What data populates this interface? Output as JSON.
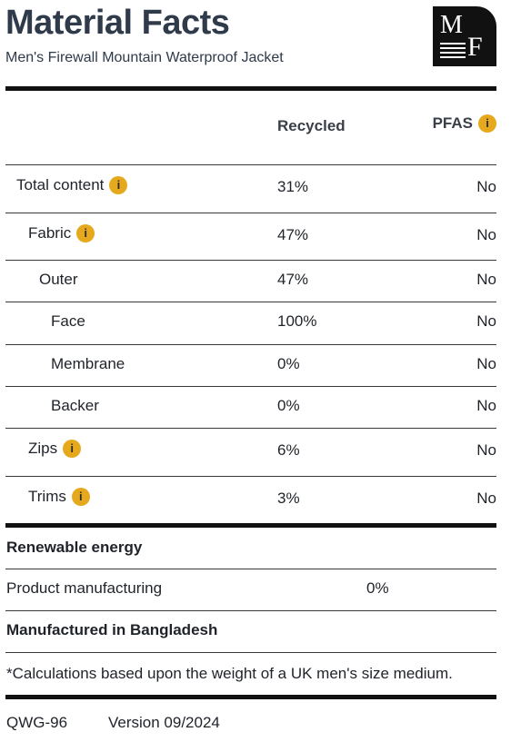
{
  "header": {
    "title": "Material Facts",
    "subtitle": "Men's Firewall Mountain Waterproof Jacket",
    "logo_text_m": "M",
    "logo_text_f": "F"
  },
  "table": {
    "col_recycled": "Recycled",
    "col_pfas": "PFAS",
    "info_glyph": "i",
    "rows": [
      {
        "label": "Total content",
        "recycled": "31%",
        "pfas": "No",
        "has_info": true
      },
      {
        "label": "Fabric",
        "recycled": "47%",
        "pfas": "No",
        "has_info": true
      },
      {
        "label": "Outer",
        "recycled": "47%",
        "pfas": "No",
        "has_info": false
      },
      {
        "label": "Face",
        "recycled": "100%",
        "pfas": "No",
        "has_info": false
      },
      {
        "label": "Membrane",
        "recycled": "0%",
        "pfas": "No",
        "has_info": false
      },
      {
        "label": "Backer",
        "recycled": "0%",
        "pfas": "No",
        "has_info": false
      },
      {
        "label": "Zips",
        "recycled": "6%",
        "pfas": "No",
        "has_info": true
      },
      {
        "label": "Trims",
        "recycled": "3%",
        "pfas": "No",
        "has_info": true
      }
    ]
  },
  "energy": {
    "heading": "Renewable energy",
    "label": "Product manufacturing",
    "value": "0%"
  },
  "origin": "Manufactured in Bangladesh",
  "footnote": "*Calculations based upon the weight of a UK men's size medium.",
  "footer": {
    "code": "QWG-96",
    "version": "Version 09/2024"
  },
  "colors": {
    "info_badge": "#e6a91d",
    "title": "#2f3a4a",
    "rule": "#111111"
  }
}
